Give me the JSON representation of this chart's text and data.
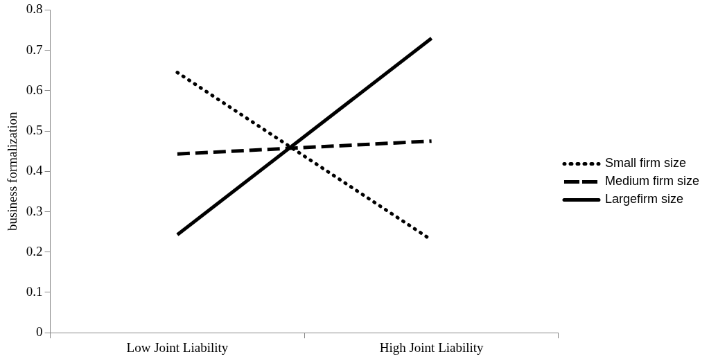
{
  "chart_data": {
    "type": "line",
    "ylabel": "business formalization",
    "categories": [
      "Low Joint Liability",
      "High Joint Liability"
    ],
    "series": [
      {
        "name": "Small firm size",
        "color": "#000000",
        "line_style": "dotted",
        "values": [
          0.645,
          0.23
        ]
      },
      {
        "name": "Medium firm size",
        "color": "#000000",
        "line_style": "dashed",
        "values": [
          0.443,
          0.475
        ]
      },
      {
        "name": "Largefirm size",
        "color": "#000000",
        "line_style": "solid",
        "values": [
          0.243,
          0.73
        ]
      }
    ],
    "ylim": [
      0,
      0.8
    ],
    "yticks": [
      0,
      0.1,
      0.2,
      0.3,
      0.4,
      0.5,
      0.6,
      0.7,
      0.8
    ],
    "grid": false,
    "legend": "right",
    "marker": "none"
  }
}
